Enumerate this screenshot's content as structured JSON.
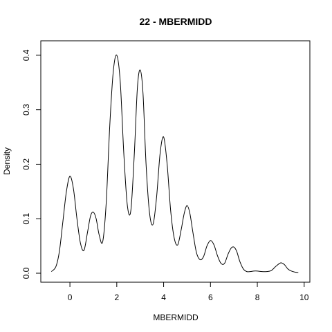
{
  "chart_data": {
    "type": "line",
    "title": "22 - MBERMIDD",
    "xlabel": "MBERMIDD",
    "ylabel": "Density",
    "xlim": [
      -0.8,
      9.8
    ],
    "ylim": [
      0.0,
      0.41
    ],
    "x_ticks": [
      0,
      2,
      4,
      6,
      8,
      10
    ],
    "x_tick_labels": [
      "0",
      "2",
      "4",
      "6",
      "8",
      "10"
    ],
    "y_ticks": [
      0.0,
      0.1,
      0.2,
      0.3,
      0.4
    ],
    "y_tick_labels": [
      "0.0",
      "0.1",
      "0.2",
      "0.3",
      "0.4"
    ],
    "grid": false,
    "series": [
      {
        "color": "#000000",
        "x": [
          -0.79,
          -0.6,
          -0.45,
          -0.3,
          -0.15,
          0.0,
          0.15,
          0.3,
          0.45,
          0.6,
          0.75,
          0.88,
          1.0,
          1.12,
          1.25,
          1.4,
          1.55,
          1.7,
          1.85,
          2.0,
          2.15,
          2.3,
          2.45,
          2.6,
          2.75,
          2.88,
          3.0,
          3.12,
          3.25,
          3.4,
          3.55,
          3.7,
          3.85,
          4.0,
          4.15,
          4.3,
          4.45,
          4.6,
          4.75,
          4.88,
          5.0,
          5.12,
          5.25,
          5.4,
          5.55,
          5.7,
          5.85,
          6.0,
          6.15,
          6.3,
          6.45,
          6.6,
          6.75,
          6.88,
          7.0,
          7.12,
          7.25,
          7.4,
          7.55,
          7.7,
          7.85,
          8.0,
          8.2,
          8.4,
          8.6,
          8.8,
          9.0,
          9.15,
          9.3,
          9.45,
          9.6,
          9.75
        ],
        "y": [
          0.003,
          0.012,
          0.04,
          0.095,
          0.15,
          0.178,
          0.155,
          0.1,
          0.055,
          0.042,
          0.075,
          0.105,
          0.112,
          0.1,
          0.07,
          0.058,
          0.13,
          0.27,
          0.37,
          0.4,
          0.35,
          0.22,
          0.125,
          0.115,
          0.22,
          0.34,
          0.373,
          0.33,
          0.2,
          0.11,
          0.09,
          0.14,
          0.22,
          0.25,
          0.2,
          0.115,
          0.065,
          0.052,
          0.08,
          0.11,
          0.124,
          0.11,
          0.075,
          0.038,
          0.025,
          0.03,
          0.05,
          0.06,
          0.052,
          0.032,
          0.018,
          0.018,
          0.035,
          0.046,
          0.048,
          0.04,
          0.022,
          0.008,
          0.003,
          0.003,
          0.004,
          0.004,
          0.003,
          0.003,
          0.005,
          0.013,
          0.019,
          0.016,
          0.008,
          0.004,
          0.002,
          0.001
        ]
      }
    ]
  }
}
